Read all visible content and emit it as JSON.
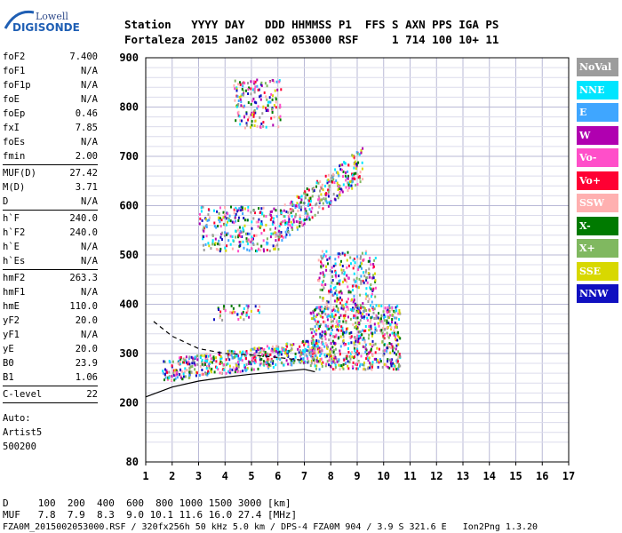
{
  "logo": {
    "line1": "Lowell",
    "line2": "DIGISONDE"
  },
  "header": {
    "labels": "Station   YYYY DAY   DDD HHMMSS P1  FFS S AXN PPS IGA PS",
    "values": "Fortaleza 2015 Jan02 002 053000 RSF     1 714 100 10+ 11"
  },
  "sidebar": {
    "groups": [
      [
        {
          "key": "foF2",
          "value": "7.400"
        },
        {
          "key": "foF1",
          "value": "N/A"
        },
        {
          "key": "foF1p",
          "value": "N/A"
        },
        {
          "key": "foE",
          "value": "N/A"
        },
        {
          "key": "foEp",
          "value": "0.46"
        },
        {
          "key": "fxI",
          "value": "7.85"
        },
        {
          "key": "foEs",
          "value": "N/A"
        },
        {
          "key": "fmin",
          "value": "2.00"
        }
      ],
      [
        {
          "key": "MUF(D)",
          "value": "27.42"
        },
        {
          "key": "M(D)",
          "value": "3.71"
        },
        {
          "key": "D",
          "value": "N/A"
        }
      ],
      [
        {
          "key": "h`F",
          "value": "240.0"
        },
        {
          "key": "h`F2",
          "value": "240.0"
        },
        {
          "key": "h`E",
          "value": "N/A"
        },
        {
          "key": "h`Es",
          "value": "N/A"
        }
      ],
      [
        {
          "key": "hmF2",
          "value": "263.3"
        },
        {
          "key": "hmF1",
          "value": "N/A"
        },
        {
          "key": "hmE",
          "value": "110.0"
        },
        {
          "key": "yF2",
          "value": "20.0"
        },
        {
          "key": "yF1",
          "value": "N/A"
        },
        {
          "key": "yE",
          "value": "20.0"
        },
        {
          "key": "B0",
          "value": "23.9"
        },
        {
          "key": "B1",
          "value": "1.06"
        }
      ],
      [
        {
          "key": "C-level",
          "value": "22"
        }
      ]
    ],
    "auto_lines": [
      "Auto:",
      "Artist5",
      "500200"
    ]
  },
  "footer": {
    "d_row": "D     100  200  400  600  800 1000 1500 3000 [km]",
    "muf_row": "MUF   7.8  7.9  8.3  9.0 10.1 11.6 16.0 27.4 [MHz]",
    "file_row": "FZA0M_2015002053000.RSF / 320fx256h 50 kHz 5.0 km / DPS-4 FZA0M 904 / 3.9 S 321.6 E   Ion2Png 1.3.20"
  },
  "legend": [
    {
      "label": "NoVal",
      "bg": "#9c9c9c",
      "fg": "#ffffff"
    },
    {
      "label": "NNE",
      "bg": "#00e5ff",
      "fg": "#ffffff"
    },
    {
      "label": "E",
      "bg": "#3fa6ff",
      "fg": "#ffffff"
    },
    {
      "label": "W",
      "bg": "#b000b0",
      "fg": "#ffffff"
    },
    {
      "label": "Vo-",
      "bg": "#ff4fc9",
      "fg": "#ffffff"
    },
    {
      "label": "Vo+",
      "bg": "#ff0033",
      "fg": "#ffffff"
    },
    {
      "label": "SSW",
      "bg": "#ffb0b0",
      "fg": "#ffffff"
    },
    {
      "label": "X-",
      "bg": "#007a00",
      "fg": "#ffffff"
    },
    {
      "label": "X+",
      "bg": "#80b860",
      "fg": "#ffffff"
    },
    {
      "label": "SSE",
      "bg": "#d8d800",
      "fg": "#ffffff"
    },
    {
      "label": "NNW",
      "bg": "#1010c0",
      "fg": "#ffffff"
    }
  ],
  "chart_data": {
    "type": "scatter",
    "title": "",
    "xlabel": "",
    "ylabel": "",
    "xlim": [
      1,
      17
    ],
    "ylim": [
      80,
      900
    ],
    "x_ticks": [
      1,
      2,
      3,
      4,
      5,
      6,
      7,
      8,
      9,
      10,
      11,
      12,
      13,
      14,
      15,
      16,
      17
    ],
    "y_ticks": [
      200,
      300,
      400,
      500,
      600,
      700,
      800,
      900
    ],
    "y_tick_labels": [
      "200",
      "300",
      "400",
      "500",
      "600",
      "700",
      "800",
      "900"
    ],
    "y_bottom_label": "80",
    "grid": true,
    "colors": [
      "#00e5ff",
      "#3fa6ff",
      "#b000b0",
      "#ff4fc9",
      "#ff0033",
      "#ffb0b0",
      "#007a00",
      "#80b860",
      "#d8d800",
      "#1010c0",
      "#9c9c9c"
    ],
    "echo_regions": [
      {
        "name": "F trace",
        "x": [
          1.6,
          7.5
        ],
        "y": [
          240,
          300
        ]
      },
      {
        "name": "dense cluster",
        "x": [
          7.2,
          10.6
        ],
        "y": [
          270,
          400
        ]
      },
      {
        "name": "spread",
        "x": [
          7.5,
          9.7
        ],
        "y": [
          400,
          510
        ]
      },
      {
        "name": "multihop 2",
        "x": [
          3.0,
          6.0
        ],
        "y": [
          510,
          600
        ]
      },
      {
        "name": "multihop 2b",
        "x": [
          6.0,
          9.2
        ],
        "y": [
          560,
          730
        ]
      },
      {
        "name": "multihop 3",
        "x": [
          4.3,
          6.1
        ],
        "y": [
          760,
          860
        ]
      },
      {
        "name": "sporadic",
        "x": [
          3.5,
          5.3
        ],
        "y": [
          370,
          400
        ]
      }
    ],
    "profile_lines": [
      {
        "name": "virtual-height dashed",
        "style": "dashed",
        "points": [
          [
            1.3,
            365
          ],
          [
            2,
            335
          ],
          [
            3,
            310
          ],
          [
            4,
            300
          ],
          [
            5,
            297
          ],
          [
            6,
            292
          ],
          [
            7,
            286
          ]
        ]
      },
      {
        "name": "true-height solid",
        "style": "solid",
        "points": [
          [
            1.0,
            212
          ],
          [
            2,
            232
          ],
          [
            3,
            244
          ],
          [
            4,
            252
          ],
          [
            5,
            258
          ],
          [
            6,
            263
          ],
          [
            7,
            268
          ],
          [
            7.4,
            263
          ]
        ]
      }
    ]
  }
}
